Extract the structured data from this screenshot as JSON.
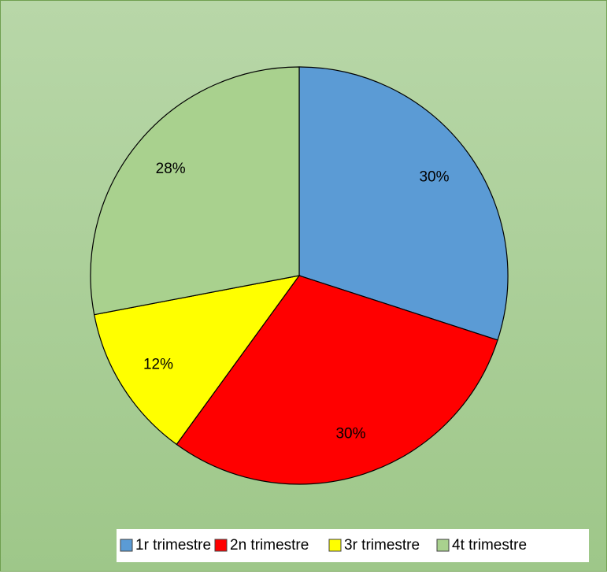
{
  "chart_data": {
    "type": "pie",
    "categories": [
      "1r trimestre",
      "2n trimestre",
      "3r trimestre",
      "4t trimestre"
    ],
    "values": [
      30,
      30,
      12,
      28
    ],
    "value_labels": [
      "30%",
      "30%",
      "12%",
      "28%"
    ],
    "colors": [
      "#5b9bd5",
      "#ff0000",
      "#ffff00",
      "#a9d18e"
    ],
    "legend": "bottom"
  }
}
